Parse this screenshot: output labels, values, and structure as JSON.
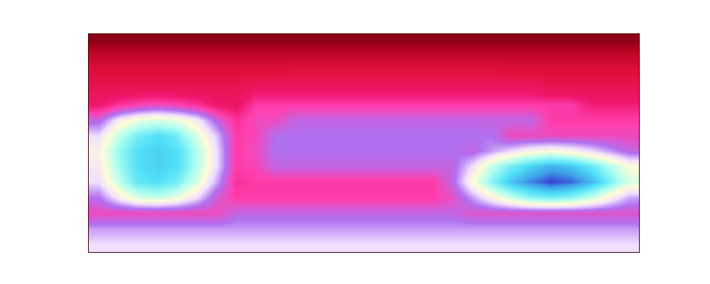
{
  "chart_data": {
    "type": "heatmap",
    "tick_labels": false,
    "grid": false,
    "zlim": [
      0,
      1
    ],
    "cells": [
      [
        0.06,
        0.06,
        0.06,
        0.06,
        0.06,
        0.06,
        0.06,
        0.06,
        0.06,
        0.06,
        0.06,
        0.06,
        0.06,
        0.06,
        0.06,
        0.06,
        0.06,
        0.06,
        0.06,
        0.06,
        0.06,
        0.06,
        0.06,
        0.06,
        0.06,
        0.06,
        0.06,
        0.06
      ],
      [
        0.16,
        0.16,
        0.16,
        0.16,
        0.16,
        0.16,
        0.16,
        0.16,
        0.16,
        0.16,
        0.16,
        0.16,
        0.16,
        0.16,
        0.16,
        0.16,
        0.16,
        0.16,
        0.16,
        0.16,
        0.16,
        0.16,
        0.16,
        0.16,
        0.16,
        0.16,
        0.16,
        0.16
      ],
      [
        0.22,
        0.22,
        0.22,
        0.22,
        0.22,
        0.22,
        0.22,
        0.22,
        0.22,
        0.22,
        0.24,
        0.24,
        0.24,
        0.24,
        0.24,
        0.24,
        0.24,
        0.24,
        0.24,
        0.24,
        0.24,
        0.22,
        0.22,
        0.22,
        0.22,
        0.22,
        0.22,
        0.22
      ],
      [
        0.28,
        0.28,
        0.28,
        0.28,
        0.28,
        0.28,
        0.28,
        0.28,
        0.32,
        0.32,
        0.32,
        0.32,
        0.32,
        0.32,
        0.32,
        0.32,
        0.32,
        0.32,
        0.32,
        0.32,
        0.32,
        0.32,
        0.32,
        0.28,
        0.28,
        0.28,
        0.28,
        0.28
      ],
      [
        0.34,
        0.4,
        0.43,
        0.45,
        0.43,
        0.4,
        0.34,
        0.32,
        0.42,
        0.42,
        0.42,
        0.42,
        0.42,
        0.42,
        0.42,
        0.42,
        0.42,
        0.42,
        0.42,
        0.42,
        0.42,
        0.42,
        0.42,
        0.42,
        0.42,
        0.36,
        0.36,
        0.36
      ],
      [
        0.5,
        0.62,
        0.68,
        0.7,
        0.68,
        0.62,
        0.5,
        0.4,
        0.45,
        0.45,
        0.5,
        0.5,
        0.5,
        0.5,
        0.5,
        0.5,
        0.5,
        0.5,
        0.5,
        0.5,
        0.5,
        0.5,
        0.5,
        0.42,
        0.42,
        0.42,
        0.42,
        0.42
      ],
      [
        0.6,
        0.72,
        0.8,
        0.84,
        0.8,
        0.7,
        0.58,
        0.42,
        0.44,
        0.52,
        0.52,
        0.52,
        0.52,
        0.52,
        0.52,
        0.52,
        0.52,
        0.52,
        0.52,
        0.52,
        0.52,
        0.45,
        0.45,
        0.45,
        0.45,
        0.45,
        0.45,
        0.45
      ],
      [
        0.64,
        0.76,
        0.84,
        0.86,
        0.84,
        0.74,
        0.6,
        0.42,
        0.45,
        0.52,
        0.52,
        0.52,
        0.52,
        0.52,
        0.52,
        0.52,
        0.52,
        0.52,
        0.52,
        0.5,
        0.55,
        0.6,
        0.64,
        0.66,
        0.64,
        0.6,
        0.55,
        0.5
      ],
      [
        0.62,
        0.75,
        0.84,
        0.86,
        0.84,
        0.74,
        0.6,
        0.42,
        0.44,
        0.5,
        0.5,
        0.5,
        0.5,
        0.5,
        0.5,
        0.5,
        0.5,
        0.5,
        0.5,
        0.6,
        0.72,
        0.8,
        0.86,
        0.9,
        0.88,
        0.82,
        0.74,
        0.66
      ],
      [
        0.6,
        0.72,
        0.82,
        0.84,
        0.8,
        0.7,
        0.56,
        0.4,
        0.42,
        0.42,
        0.42,
        0.42,
        0.42,
        0.42,
        0.42,
        0.42,
        0.42,
        0.42,
        0.5,
        0.66,
        0.78,
        0.88,
        0.94,
        0.98,
        0.96,
        0.9,
        0.8,
        0.7
      ],
      [
        0.52,
        0.62,
        0.7,
        0.72,
        0.68,
        0.6,
        0.48,
        0.42,
        0.42,
        0.42,
        0.42,
        0.42,
        0.42,
        0.42,
        0.42,
        0.42,
        0.42,
        0.42,
        0.46,
        0.55,
        0.64,
        0.72,
        0.78,
        0.8,
        0.78,
        0.72,
        0.64,
        0.56
      ],
      [
        0.45,
        0.45,
        0.45,
        0.45,
        0.45,
        0.45,
        0.45,
        0.5,
        0.5,
        0.5,
        0.5,
        0.5,
        0.5,
        0.5,
        0.5,
        0.5,
        0.5,
        0.5,
        0.5,
        0.47,
        0.47,
        0.47,
        0.47,
        0.47,
        0.47,
        0.47,
        0.47,
        0.47
      ],
      [
        0.55,
        0.55,
        0.55,
        0.55,
        0.55,
        0.55,
        0.55,
        0.55,
        0.55,
        0.55,
        0.55,
        0.55,
        0.55,
        0.55,
        0.55,
        0.55,
        0.55,
        0.55,
        0.55,
        0.55,
        0.55,
        0.55,
        0.55,
        0.55,
        0.55,
        0.55,
        0.55,
        0.55
      ],
      [
        0.6,
        0.6,
        0.6,
        0.6,
        0.6,
        0.6,
        0.6,
        0.6,
        0.6,
        0.6,
        0.6,
        0.6,
        0.6,
        0.6,
        0.6,
        0.6,
        0.6,
        0.6,
        0.6,
        0.6,
        0.6,
        0.6,
        0.6,
        0.6,
        0.6,
        0.6,
        0.6,
        0.6
      ]
    ]
  }
}
